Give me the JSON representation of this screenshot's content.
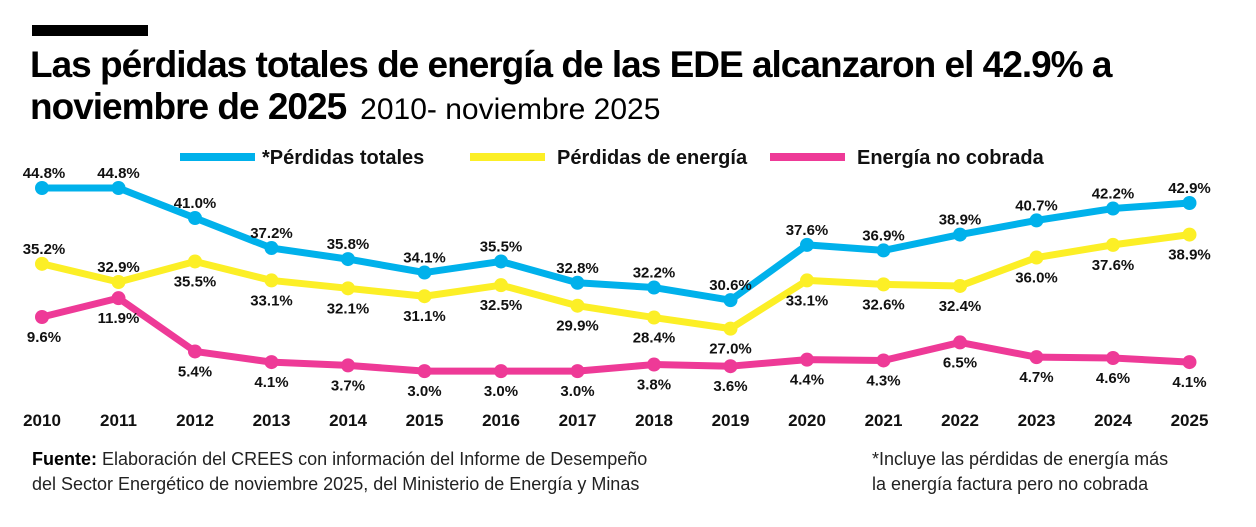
{
  "title_line1": "Las pérdidas totales de energía de las EDE alcanzaron el 42.9% a",
  "title_line2": "noviembre de 2025",
  "subtitle": "2010- noviembre 2025",
  "chart_data": {
    "type": "line",
    "title": "Las pérdidas totales de energía de las EDE alcanzaron el 42.9% a noviembre de 2025",
    "subtitle": "2010- noviembre 2025",
    "xlabel": "",
    "ylabel": "",
    "legend_position": "top",
    "grid": false,
    "x": [
      "2010",
      "2011",
      "2012",
      "2013",
      "2014",
      "2015",
      "2016",
      "2017",
      "2018",
      "2019",
      "2020",
      "2021",
      "2022",
      "2023",
      "2024",
      "2025"
    ],
    "series": [
      {
        "name": "*Pérdidas totales",
        "color": "#00b1eb",
        "values": [
          44.8,
          44.8,
          41.0,
          37.2,
          35.8,
          34.1,
          35.5,
          32.8,
          32.2,
          30.6,
          37.6,
          36.9,
          38.9,
          40.7,
          42.2,
          42.9
        ]
      },
      {
        "name": "Pérdidas de energía",
        "color": "#fcef26",
        "values": [
          35.2,
          32.9,
          35.5,
          33.1,
          32.1,
          31.1,
          32.5,
          29.9,
          28.4,
          27.0,
          33.1,
          32.6,
          32.4,
          36.0,
          37.6,
          38.9
        ]
      },
      {
        "name": "Energía no cobrada",
        "color": "#ee3a97",
        "values": [
          9.6,
          11.9,
          5.4,
          4.1,
          3.7,
          3.0,
          3.0,
          3.0,
          3.8,
          3.6,
          4.4,
          4.3,
          6.5,
          4.7,
          4.6,
          4.1
        ]
      }
    ],
    "unit": "%"
  },
  "footer": {
    "source_label": "Fuente:",
    "source_text_1": " Elaboración del CREES con información del Informe de Desempeño",
    "source_text_2": "del Sector Energético de noviembre 2025, del Ministerio de Energía y Minas",
    "note_1": "*Incluye las pérdidas de energía más",
    "note_2": "la energía factura pero no cobrada"
  }
}
